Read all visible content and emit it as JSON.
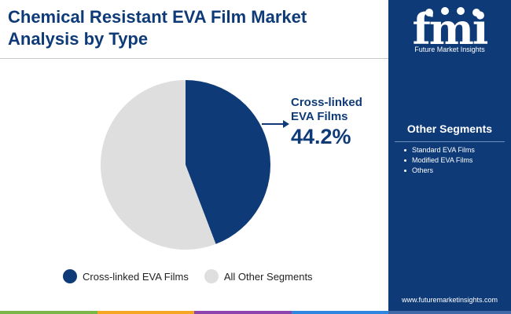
{
  "header": {
    "title": "Chemical Resistant EVA Film Market Analysis by Type"
  },
  "chart_data": {
    "type": "pie",
    "title": "Chemical Resistant EVA Film Market Analysis by Type",
    "slices": [
      {
        "label": "Cross-linked EVA Films",
        "value": 44.2,
        "color": "#0e3b78"
      },
      {
        "label": "All Other Segments",
        "value": 55.8,
        "color": "#dedede"
      }
    ],
    "callout": {
      "label": "Cross-linked EVA Films",
      "value": "44.2%"
    },
    "legend": {
      "placement": "bottom",
      "entries": [
        "Cross-linked EVA Films",
        "All Other Segments"
      ]
    }
  },
  "sidebar": {
    "brand": "Future Market Insights",
    "segments_title": "Other Segments",
    "segments": [
      "Standard EVA Films",
      "Modified EVA Films",
      "Others"
    ],
    "website": "www.futuremarketinsights.com"
  },
  "colors": {
    "brand_blue": "#0e3b78",
    "other_gray": "#dedede",
    "bar": [
      "#7ab648",
      "#f5a623",
      "#8e44ad",
      "#2e86de"
    ]
  }
}
